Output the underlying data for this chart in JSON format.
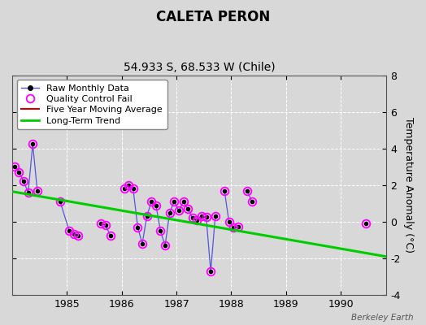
{
  "title": "CALETA PERON",
  "subtitle": "54.933 S, 68.533 W (Chile)",
  "ylabel": "Temperature Anomaly (°C)",
  "attribution": "Berkeley Earth",
  "background_color": "#d8d8d8",
  "plot_bg_color": "#d8d8d8",
  "ylim": [
    -4,
    8
  ],
  "yticks": [
    -4,
    -2,
    0,
    2,
    4,
    6,
    8
  ],
  "xlim": [
    1984.0,
    1990.83
  ],
  "xticks": [
    1985,
    1986,
    1987,
    1988,
    1989,
    1990
  ],
  "segments": [
    {
      "x": [
        1984.042,
        1984.125,
        1984.208,
        1984.292,
        1984.375,
        1984.458
      ],
      "y": [
        3.0,
        2.7,
        2.2,
        1.6,
        4.25,
        1.7
      ]
    },
    {
      "x": [
        1984.875,
        1985.042,
        1985.125,
        1985.208
      ],
      "y": [
        1.1,
        -0.5,
        -0.65,
        -0.75
      ]
    },
    {
      "x": [
        1985.625,
        1985.708,
        1985.792
      ],
      "y": [
        -0.1,
        -0.2,
        -0.75
      ]
    },
    {
      "x": [
        1986.042,
        1986.125,
        1986.208,
        1986.292,
        1986.375,
        1986.458,
        1986.542,
        1986.625,
        1986.708,
        1986.792,
        1986.875,
        1986.958,
        1987.042,
        1987.125,
        1987.208,
        1987.292,
        1987.375,
        1987.458,
        1987.542,
        1987.625,
        1987.708
      ],
      "y": [
        1.8,
        2.0,
        1.8,
        -0.3,
        -1.2,
        0.3,
        1.1,
        0.9,
        -0.5,
        -1.3,
        0.5,
        1.1,
        0.6,
        1.1,
        0.7,
        0.2,
        0.1,
        0.3,
        0.25,
        -2.7,
        0.3
      ]
    },
    {
      "x": [
        1987.875,
        1987.958,
        1988.042,
        1988.125
      ],
      "y": [
        1.7,
        0.0,
        -0.3,
        -0.25
      ]
    },
    {
      "x": [
        1988.292,
        1988.375
      ],
      "y": [
        1.7,
        1.1
      ]
    },
    {
      "x": [
        1990.458
      ],
      "y": [
        -0.1
      ]
    }
  ],
  "qc_fail_x": [
    1984.042,
    1984.125,
    1984.208,
    1984.292,
    1984.375,
    1984.458,
    1984.875,
    1985.042,
    1985.125,
    1985.208,
    1985.625,
    1985.708,
    1985.792,
    1986.042,
    1986.125,
    1986.208,
    1986.292,
    1986.375,
    1986.458,
    1986.542,
    1986.625,
    1986.708,
    1986.792,
    1986.875,
    1986.958,
    1987.042,
    1987.125,
    1987.208,
    1987.292,
    1987.375,
    1987.458,
    1987.542,
    1987.625,
    1987.708,
    1987.875,
    1987.958,
    1988.042,
    1988.125,
    1988.292,
    1988.375,
    1990.458
  ],
  "qc_fail_y": [
    3.0,
    2.7,
    2.2,
    1.6,
    4.25,
    1.7,
    1.1,
    -0.5,
    -0.65,
    -0.75,
    -0.1,
    -0.2,
    -0.75,
    1.8,
    2.0,
    1.8,
    -0.3,
    -1.2,
    0.3,
    1.1,
    0.9,
    -0.5,
    -1.3,
    0.5,
    1.1,
    0.6,
    1.1,
    0.7,
    0.2,
    0.1,
    0.3,
    0.25,
    -2.7,
    0.3,
    1.7,
    0.0,
    -0.3,
    -0.25,
    1.7,
    1.1,
    -0.1
  ],
  "trend_x": [
    1984.0,
    1990.83
  ],
  "trend_y": [
    1.65,
    -1.9
  ],
  "line_color": "#5555dd",
  "marker_color": "#000000",
  "qc_color": "#ff00ff",
  "trend_color": "#00cc00",
  "ma_color": "#cc0000",
  "title_fontsize": 12,
  "subtitle_fontsize": 10,
  "label_fontsize": 9,
  "tick_fontsize": 9,
  "legend_fontsize": 8
}
